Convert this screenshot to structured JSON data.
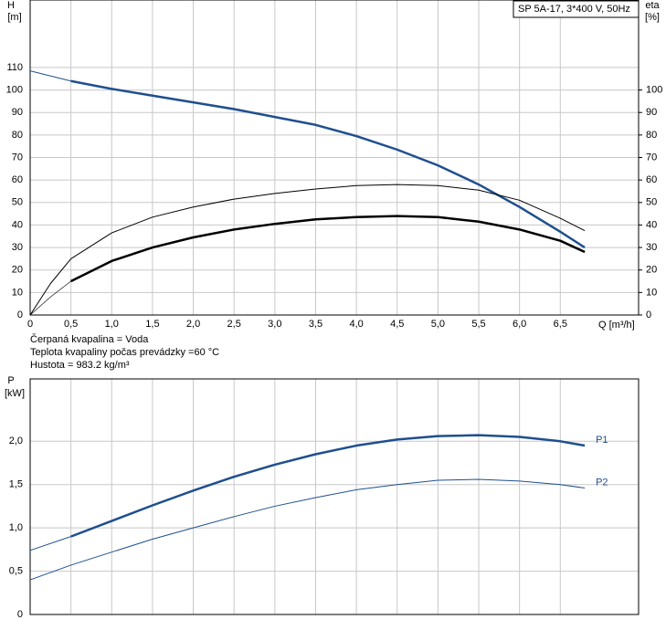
{
  "chart_data": [
    {
      "type": "line",
      "y_label": "H",
      "y_unit": "[m]",
      "y2_label": "eta",
      "y2_unit": "[%]",
      "box_label": "SP 5A-17, 3*400 V, 50Hz",
      "x_label": "Q [m³/h]",
      "notes": [
        "Čerpaná kvapalina = Voda",
        "Teplota kvapaliny počas prevádzky =60 °C",
        "Hustota = 983.2 kg/m³"
      ],
      "xlim": [
        0,
        7.46
      ],
      "ylim": [
        0,
        140
      ],
      "y2lim": [
        0,
        140
      ],
      "grid": true,
      "xticks": [
        0,
        {
          "value": 0.5,
          "label": "0,5"
        },
        {
          "value": 1,
          "label": "1,0"
        },
        {
          "value": 1.5,
          "label": "1,5"
        },
        {
          "value": 2,
          "label": "2,0"
        },
        {
          "value": 2.5,
          "label": "2,5"
        },
        {
          "value": 3,
          "label": "3,0"
        },
        {
          "value": 3.5,
          "label": "3,5"
        },
        {
          "value": 4,
          "label": "4,0"
        },
        {
          "value": 4.5,
          "label": "4,5"
        },
        {
          "value": 5,
          "label": "5,0"
        },
        {
          "value": 5.5,
          "label": "5,5"
        },
        {
          "value": 6,
          "label": "6,0"
        },
        {
          "value": 6.5,
          "label": "6,5"
        }
      ],
      "yticks": [
        0,
        10,
        20,
        30,
        40,
        50,
        60,
        70,
        80,
        90,
        100,
        110
      ],
      "y2ticks": [
        0,
        10,
        20,
        30,
        40,
        50,
        60,
        70,
        80,
        90,
        100
      ],
      "series": [
        {
          "color": "#1f4f8f",
          "width": 1,
          "x": [
            0,
            0.5
          ],
          "values": [
            108.5,
            104
          ]
        },
        {
          "color": "#1f4f8f",
          "width": 2.5,
          "x": [
            0.5,
            1,
            1.5,
            2,
            2.5,
            3,
            3.5,
            4,
            4.5,
            5,
            5.5,
            6,
            6.5,
            6.8
          ],
          "values": [
            104,
            100.5,
            97.5,
            94.5,
            91.5,
            88,
            84.5,
            79.5,
            73.5,
            66.5,
            58,
            48,
            37,
            30
          ]
        },
        {
          "color": "#000000",
          "width": 1,
          "axis": "y2",
          "x": [
            0,
            0.25,
            0.5,
            1,
            1.5,
            2,
            2.5,
            3,
            3.5,
            4,
            4.5,
            5,
            5.5,
            6,
            6.5,
            6.8
          ],
          "values": [
            0,
            14,
            25,
            36.5,
            43.5,
            48,
            51.5,
            54,
            56,
            57.5,
            58,
            57.5,
            55.5,
            51,
            43,
            37.5
          ]
        },
        {
          "color": "#000000",
          "width": 0.6,
          "axis": "y2",
          "x": [
            0,
            0.25,
            0.5
          ],
          "values": [
            0,
            8,
            15
          ]
        },
        {
          "color": "#000000",
          "width": 2.5,
          "axis": "y2",
          "x": [
            0.5,
            1,
            1.5,
            2,
            2.5,
            3,
            3.5,
            4,
            4.5,
            5,
            5.5,
            6,
            6.5,
            6.8
          ],
          "values": [
            15,
            24,
            30,
            34.5,
            38,
            40.5,
            42.5,
            43.5,
            44,
            43.5,
            41.5,
            38,
            33,
            28
          ]
        }
      ]
    },
    {
      "type": "line",
      "y_label": "P",
      "y_unit": "[kW]",
      "xlim": [
        0,
        7.46
      ],
      "ylim": [
        0,
        2.72
      ],
      "grid": true,
      "xtick_labels": false,
      "xticks": [
        0,
        0.5,
        1,
        1.5,
        2,
        2.5,
        3,
        3.5,
        4,
        4.5,
        5,
        5.5,
        6,
        6.5
      ],
      "yticks": [
        0,
        {
          "value": 0.5,
          "label": "0,5"
        },
        {
          "value": 1,
          "label": "1,0"
        },
        {
          "value": 1.5,
          "label": "1,5"
        },
        {
          "value": 2,
          "label": "2,0"
        }
      ],
      "series": [
        {
          "color": "#1f4f8f",
          "width": 1,
          "x": [
            0,
            0.5
          ],
          "values": [
            0.74,
            0.9
          ]
        },
        {
          "name": "P1",
          "color": "#1f4f8f",
          "width": 2.5,
          "x": [
            0.5,
            1,
            1.5,
            2,
            2.5,
            3,
            3.5,
            4,
            4.5,
            5,
            5.5,
            6,
            6.5,
            6.8
          ],
          "values": [
            0.9,
            1.08,
            1.26,
            1.43,
            1.59,
            1.73,
            1.85,
            1.95,
            2.02,
            2.06,
            2.07,
            2.05,
            2,
            1.95
          ]
        },
        {
          "name": "P2",
          "color": "#1f4f8f",
          "width": 1,
          "x": [
            0,
            0.5,
            1,
            1.5,
            2,
            2.5,
            3,
            3.5,
            4,
            4.5,
            5,
            5.5,
            6,
            6.5,
            6.8
          ],
          "values": [
            0.4,
            0.57,
            0.72,
            0.87,
            1,
            1.13,
            1.25,
            1.35,
            1.44,
            1.5,
            1.55,
            1.56,
            1.54,
            1.5,
            1.46
          ]
        }
      ]
    }
  ]
}
